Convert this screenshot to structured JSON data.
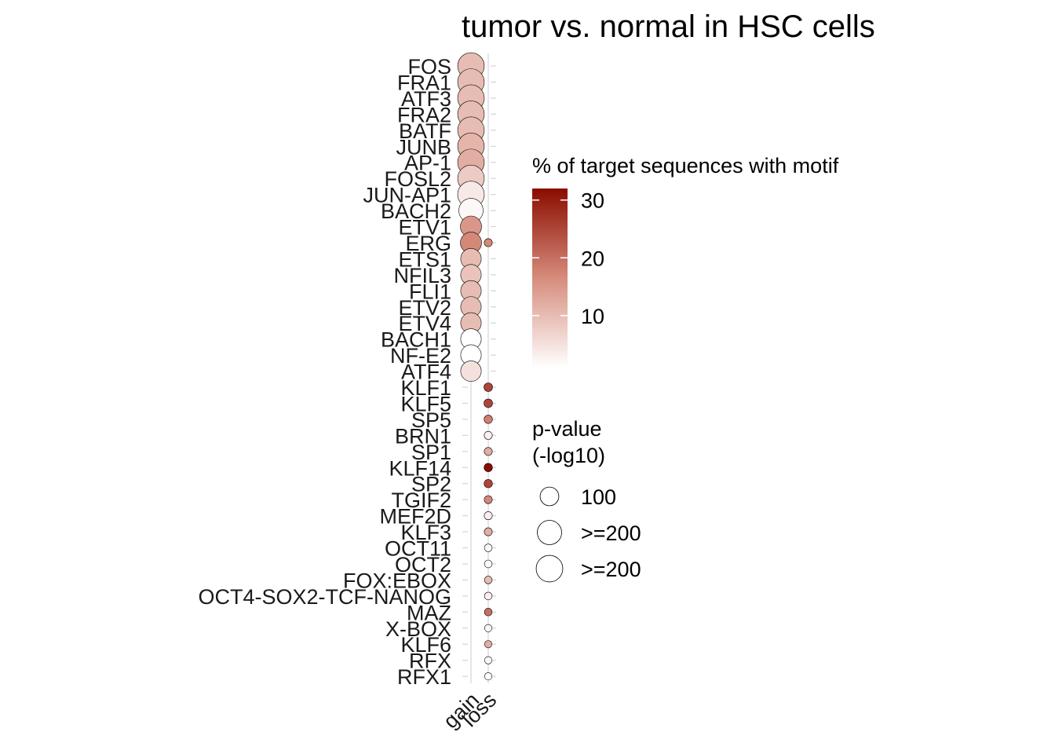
{
  "chart_data": {
    "type": "scatter",
    "title": "tumor vs. normal in HSC cells",
    "x_categories": [
      "gain",
      "loss"
    ],
    "y_categories": [
      "FOS",
      "FRA1",
      "ATF3",
      "FRA2",
      "BATF",
      "JUNB",
      "AP-1",
      "FOSL2",
      "JUN-AP1",
      "BACH2",
      "ETV1",
      "ERG",
      "ETS1",
      "NFIL3",
      "FLI1",
      "ETV2",
      "ETV4",
      "BACH1",
      "NF-E2",
      "ATF4",
      "KLF1",
      "KLF5",
      "SP5",
      "BRN1",
      "SP1",
      "KLF14",
      "SP2",
      "TGIF2",
      "MEF2D",
      "KLF3",
      "OCT11",
      "OCT2",
      "FOX:EBOX",
      "OCT4-SOX2-TCF-NANOG",
      "MAZ",
      "X-BOX",
      "KLF6",
      "RFX",
      "RFX1"
    ],
    "points": [
      {
        "motif": "FOS",
        "direction": "gain",
        "pct": 10,
        "pvalue_log10": 250
      },
      {
        "motif": "FRA1",
        "direction": "gain",
        "pct": 10,
        "pvalue_log10": 250
      },
      {
        "motif": "ATF3",
        "direction": "gain",
        "pct": 10,
        "pvalue_log10": 250
      },
      {
        "motif": "FRA2",
        "direction": "gain",
        "pct": 10,
        "pvalue_log10": 250
      },
      {
        "motif": "BATF",
        "direction": "gain",
        "pct": 10,
        "pvalue_log10": 250
      },
      {
        "motif": "JUNB",
        "direction": "gain",
        "pct": 11,
        "pvalue_log10": 250
      },
      {
        "motif": "AP-1",
        "direction": "gain",
        "pct": 12,
        "pvalue_log10": 250
      },
      {
        "motif": "FOSL2",
        "direction": "gain",
        "pct": 8,
        "pvalue_log10": 250
      },
      {
        "motif": "JUN-AP1",
        "direction": "gain",
        "pct": 4,
        "pvalue_log10": 250
      },
      {
        "motif": "BACH2",
        "direction": "gain",
        "pct": 2,
        "pvalue_log10": 200
      },
      {
        "motif": "ETV1",
        "direction": "gain",
        "pct": 15,
        "pvalue_log10": 140
      },
      {
        "motif": "ERG",
        "direction": "gain",
        "pct": 17,
        "pvalue_log10": 140
      },
      {
        "motif": "ERG",
        "direction": "loss",
        "pct": 17,
        "pvalue_log10": 5
      },
      {
        "motif": "ETS1",
        "direction": "gain",
        "pct": 10,
        "pvalue_log10": 130
      },
      {
        "motif": "NFIL3",
        "direction": "gain",
        "pct": 9,
        "pvalue_log10": 130
      },
      {
        "motif": "FLI1",
        "direction": "gain",
        "pct": 10,
        "pvalue_log10": 130
      },
      {
        "motif": "ETV2",
        "direction": "gain",
        "pct": 10,
        "pvalue_log10": 130
      },
      {
        "motif": "ETV4",
        "direction": "gain",
        "pct": 10,
        "pvalue_log10": 130
      },
      {
        "motif": "BACH1",
        "direction": "gain",
        "pct": 1,
        "pvalue_log10": 130
      },
      {
        "motif": "NF-E2",
        "direction": "gain",
        "pct": 1,
        "pvalue_log10": 130
      },
      {
        "motif": "ATF4",
        "direction": "gain",
        "pct": 5,
        "pvalue_log10": 130
      },
      {
        "motif": "KLF1",
        "direction": "loss",
        "pct": 25,
        "pvalue_log10": 7
      },
      {
        "motif": "KLF5",
        "direction": "loss",
        "pct": 25,
        "pvalue_log10": 7
      },
      {
        "motif": "SP5",
        "direction": "loss",
        "pct": 18,
        "pvalue_log10": 6
      },
      {
        "motif": "BRN1",
        "direction": "loss",
        "pct": 3,
        "pvalue_log10": 5
      },
      {
        "motif": "SP1",
        "direction": "loss",
        "pct": 12,
        "pvalue_log10": 5
      },
      {
        "motif": "KLF14",
        "direction": "loss",
        "pct": 32,
        "pvalue_log10": 6
      },
      {
        "motif": "SP2",
        "direction": "loss",
        "pct": 25,
        "pvalue_log10": 6
      },
      {
        "motif": "TGIF2",
        "direction": "loss",
        "pct": 17,
        "pvalue_log10": 5
      },
      {
        "motif": "MEF2D",
        "direction": "loss",
        "pct": 3,
        "pvalue_log10": 5
      },
      {
        "motif": "KLF3",
        "direction": "loss",
        "pct": 12,
        "pvalue_log10": 5
      },
      {
        "motif": "OCT11",
        "direction": "loss",
        "pct": 2,
        "pvalue_log10": 4
      },
      {
        "motif": "OCT2",
        "direction": "loss",
        "pct": 2,
        "pvalue_log10": 4
      },
      {
        "motif": "FOX:EBOX",
        "direction": "loss",
        "pct": 10,
        "pvalue_log10": 4
      },
      {
        "motif": "OCT4-SOX2-TCF-NANOG",
        "direction": "loss",
        "pct": 3,
        "pvalue_log10": 4
      },
      {
        "motif": "MAZ",
        "direction": "loss",
        "pct": 20,
        "pvalue_log10": 4
      },
      {
        "motif": "X-BOX",
        "direction": "loss",
        "pct": 2,
        "pvalue_log10": 3
      },
      {
        "motif": "KLF6",
        "direction": "loss",
        "pct": 12,
        "pvalue_log10": 3
      },
      {
        "motif": "RFX",
        "direction": "loss",
        "pct": 2,
        "pvalue_log10": 3
      },
      {
        "motif": "RFX1",
        "direction": "loss",
        "pct": 1,
        "pvalue_log10": 3
      }
    ],
    "color_legend": {
      "title": "% of target sequences with motif",
      "ticks": [
        10,
        20,
        30
      ],
      "range": [
        1,
        32
      ],
      "low_color": "#ffffff",
      "high_color": "#8b0c00"
    },
    "size_legend": {
      "title_line1": "p-value",
      "title_line2": "(-log10)",
      "entries": [
        {
          "label": "100",
          "value": 100
        },
        {
          "label": ">=200",
          "value": 200
        },
        {
          "label": ">=200",
          "value": 250
        }
      ]
    },
    "grid": true,
    "legend_position": "right"
  }
}
